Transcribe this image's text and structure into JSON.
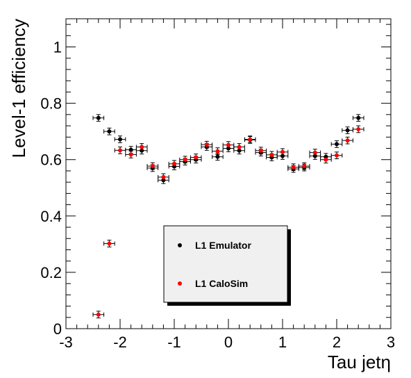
{
  "chart_data": {
    "type": "scatter",
    "title": "",
    "xlabel": "Tau jetη",
    "ylabel": "Level-1 efficiency",
    "xlim": [
      -3,
      3
    ],
    "ylim": [
      0,
      1.1
    ],
    "x_ticks": [
      "-3",
      "-2",
      "-1",
      "0",
      "1",
      "2",
      "3"
    ],
    "y_ticks": [
      "0",
      "0.2",
      "0.4",
      "0.6",
      "0.8",
      "1"
    ],
    "x_error": 0.1,
    "y_error": 0.012,
    "grid": false,
    "legend_position": "bottom-center",
    "series": [
      {
        "name": "L1 Emulator",
        "color": "#000000",
        "x": [
          -2.4,
          -2.2,
          -2.0,
          -1.8,
          -1.6,
          -1.4,
          -1.2,
          -1.0,
          -0.8,
          -0.6,
          -0.4,
          -0.2,
          0.0,
          0.2,
          0.4,
          0.6,
          0.8,
          1.0,
          1.2,
          1.4,
          1.6,
          1.8,
          2.0,
          2.2,
          2.4
        ],
        "y": [
          0.748,
          0.7,
          0.672,
          0.635,
          0.632,
          0.57,
          0.527,
          0.576,
          0.593,
          0.6,
          0.645,
          0.61,
          0.64,
          0.632,
          0.67,
          0.625,
          0.608,
          0.613,
          0.567,
          0.572,
          0.613,
          0.61,
          0.655,
          0.704,
          0.748
        ]
      },
      {
        "name": "L1 CaloSim",
        "color": "#ff0000",
        "x": [
          -2.4,
          -2.2,
          -2.0,
          -1.8,
          -1.6,
          -1.4,
          -1.2,
          -1.0,
          -0.8,
          -0.6,
          -0.4,
          -0.2,
          0.0,
          0.2,
          0.4,
          0.6,
          0.8,
          1.0,
          1.2,
          1.4,
          1.6,
          1.8,
          2.0,
          2.2,
          2.4
        ],
        "y": [
          0.05,
          0.302,
          0.633,
          0.618,
          0.645,
          0.577,
          0.538,
          0.585,
          0.6,
          0.608,
          0.653,
          0.63,
          0.652,
          0.645,
          0.672,
          0.632,
          0.617,
          0.627,
          0.573,
          0.577,
          0.625,
          0.6,
          0.615,
          0.668,
          0.708
        ]
      }
    ]
  }
}
